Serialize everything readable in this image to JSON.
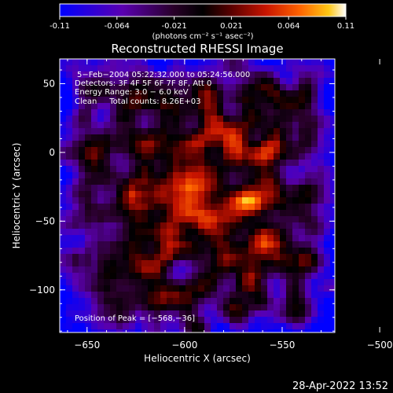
{
  "chart_data": {
    "type": "heatmap",
    "title": "Reconstructed RHESSI Image",
    "colorbar": {
      "min": -0.11,
      "max": 0.11,
      "ticks": [
        "-0.11",
        "-0.064",
        "-0.021",
        "0.021",
        "0.064",
        "0.11"
      ],
      "unit_label": "(photons cm⁻² s⁻¹ asec⁻²)",
      "colors": [
        "#0000ff",
        "#5a00b0",
        "#280028",
        "#000000",
        "#5a0000",
        "#c81400",
        "#ff6400",
        "#ffc814",
        "#ffffff"
      ]
    },
    "xlabel": "Heliocentric X (arcsec)",
    "ylabel": "Heliocentric Y (arcsec)",
    "xlim": [
      -664,
      -523
    ],
    "ylim": [
      -131,
      68
    ],
    "x_ticks": [
      {
        "value": -650,
        "label": "−650"
      },
      {
        "value": -600,
        "label": "−600"
      },
      {
        "value": -550,
        "label": "−550"
      },
      {
        "value": -500,
        "label": "−500"
      }
    ],
    "y_ticks": [
      {
        "value": 50,
        "label": "50"
      },
      {
        "value": 0,
        "label": "0"
      },
      {
        "value": -50,
        "label": "−50"
      },
      {
        "value": -100,
        "label": "−100"
      }
    ],
    "annotations": [
      "5−Feb−2004 05:22:32.000 to 05:24:56.000",
      "Detectors: 3F 4F 5F 6F 7F 8F, Att 0",
      "Energy Range: 3.0 − 6.0 keV",
      "Clean     Total counts: 8.26E+03"
    ],
    "peak": {
      "x": -568,
      "y": -36,
      "label": "Position of Peak = [−568,−36]"
    },
    "grid": false
  },
  "footer": {
    "timestamp": "28-Apr-2022 13:52"
  }
}
